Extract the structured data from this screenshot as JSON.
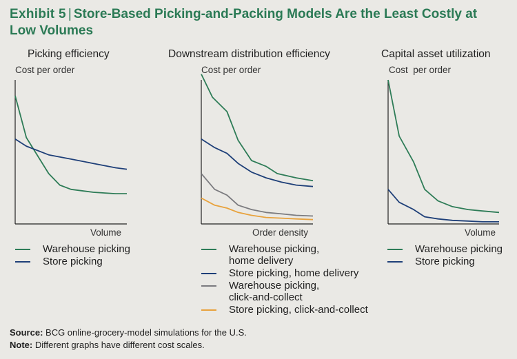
{
  "header": {
    "exhibit": "Exhibit 5",
    "separator": "|",
    "title": "Store-Based Picking-and-Packing Models Are the Least Costly at Low Volumes"
  },
  "colors": {
    "green": "#2e7c57",
    "blue": "#1e3f78",
    "gray": "#7b7b7f",
    "orange": "#e8a23c",
    "axis": "#222222",
    "title": "#2b7a55",
    "background": "#eae9e5"
  },
  "chart_data": [
    {
      "type": "line",
      "title": "Picking efficiency",
      "ylabel": "Cost per order",
      "xlabel": "Volume",
      "xlim": [
        0,
        10
      ],
      "ylim": [
        0,
        10
      ],
      "series": [
        {
          "name": "Warehouse picking",
          "color": "green",
          "x": [
            0,
            1,
            3,
            4,
            5,
            7,
            9,
            10
          ],
          "y": [
            8.9,
            6.0,
            3.5,
            2.7,
            2.4,
            2.2,
            2.1,
            2.1
          ]
        },
        {
          "name": "Store picking",
          "color": "blue",
          "x": [
            0,
            1,
            3,
            5,
            7,
            9,
            10
          ],
          "y": [
            5.9,
            5.4,
            4.8,
            4.5,
            4.2,
            3.9,
            3.8
          ]
        }
      ]
    },
    {
      "type": "line",
      "title": "Downstream distribution efficiency",
      "ylabel": "Cost per order",
      "xlabel": "Order density",
      "xlim": [
        0,
        10
      ],
      "ylim": [
        0,
        10
      ],
      "series": [
        {
          "name": "Warehouse picking, home delivery",
          "color": "green",
          "x": [
            0,
            1,
            2.3,
            3.3,
            4.5,
            5.8,
            6.8,
            8.5,
            10
          ],
          "y": [
            10.4,
            8.8,
            7.8,
            5.8,
            4.4,
            4.0,
            3.5,
            3.2,
            3.0
          ]
        },
        {
          "name": "Store picking, home delivery",
          "color": "blue",
          "x": [
            0,
            1.2,
            2.3,
            3.3,
            4.5,
            5.8,
            7.2,
            8.5,
            10
          ],
          "y": [
            5.9,
            5.3,
            4.9,
            4.2,
            3.6,
            3.2,
            2.9,
            2.7,
            2.6
          ]
        },
        {
          "name": "Warehouse picking, click-and-collect",
          "color": "gray",
          "x": [
            0,
            1.2,
            2.3,
            3.3,
            4.5,
            5.8,
            7.2,
            8.5,
            10
          ],
          "y": [
            3.5,
            2.4,
            2.0,
            1.3,
            1.0,
            0.8,
            0.7,
            0.6,
            0.55
          ]
        },
        {
          "name": "Store picking, click-and-collect",
          "color": "orange",
          "x": [
            0,
            1.2,
            2.3,
            3.3,
            4.5,
            5.8,
            7.2,
            8.5,
            10
          ],
          "y": [
            1.8,
            1.3,
            1.1,
            0.8,
            0.6,
            0.45,
            0.4,
            0.35,
            0.3
          ]
        }
      ]
    },
    {
      "type": "line",
      "title": "Capital asset utilization",
      "ylabel": "Cost  per order",
      "xlabel": "Volume",
      "xlim": [
        0,
        10
      ],
      "ylim": [
        0,
        10
      ],
      "series": [
        {
          "name": "Warehouse picking",
          "color": "green",
          "x": [
            0,
            1,
            2.3,
            3.3,
            4.5,
            5.8,
            7.2,
            8.5,
            10
          ],
          "y": [
            10.0,
            6.1,
            4.3,
            2.4,
            1.6,
            1.2,
            1.0,
            0.9,
            0.8
          ]
        },
        {
          "name": "Store picking",
          "color": "blue",
          "x": [
            0,
            1,
            2.3,
            3.3,
            4.5,
            5.8,
            7.2,
            8.5,
            10
          ],
          "y": [
            2.4,
            1.5,
            1.0,
            0.5,
            0.35,
            0.25,
            0.2,
            0.15,
            0.15
          ]
        }
      ]
    }
  ],
  "legends": [
    {
      "items": [
        {
          "lines": [
            "Warehouse picking"
          ],
          "color": "green"
        },
        {
          "lines": [
            "Store picking"
          ],
          "color": "blue"
        }
      ]
    },
    {
      "items": [
        {
          "lines": [
            "Warehouse picking,",
            "home delivery"
          ],
          "color": "green"
        },
        {
          "lines": [
            "Store picking, home delivery"
          ],
          "color": "blue"
        },
        {
          "lines": [
            "Warehouse picking,",
            "click-and-collect"
          ],
          "color": "gray"
        },
        {
          "lines": [
            "Store picking, click-and-collect"
          ],
          "color": "orange"
        }
      ]
    },
    {
      "items": [
        {
          "lines": [
            "Warehouse picking"
          ],
          "color": "green"
        },
        {
          "lines": [
            "Store picking"
          ],
          "color": "blue"
        }
      ]
    }
  ],
  "footer": {
    "source_label": "Source:",
    "source_text": " BCG online-grocery-model simulations for the U.S.",
    "note_label": "Note:",
    "note_text": " Different graphs have different cost scales."
  }
}
